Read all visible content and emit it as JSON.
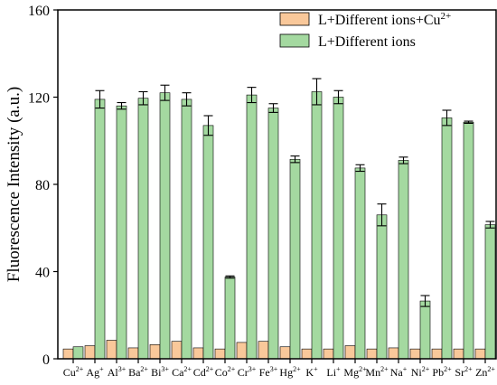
{
  "chart_data": {
    "type": "bar",
    "title": "",
    "xlabel": "",
    "ylabel": "Fluorescence Intensity (a.u.)",
    "ylim": [
      0,
      160
    ],
    "yticks": [
      0,
      40,
      80,
      120,
      160
    ],
    "grid": false,
    "legend_position": "top-right",
    "categories": [
      {
        "base": "Cu",
        "sup": "2+"
      },
      {
        "base": "Ag",
        "sup": "+"
      },
      {
        "base": "Al",
        "sup": "3+"
      },
      {
        "base": "Ba",
        "sup": "2+"
      },
      {
        "base": "Bi",
        "sup": "3+"
      },
      {
        "base": "Ca",
        "sup": "2+"
      },
      {
        "base": "Cd",
        "sup": "2+"
      },
      {
        "base": "Co",
        "sup": "2+"
      },
      {
        "base": "Cr",
        "sup": "3+"
      },
      {
        "base": "Fe",
        "sup": "3+"
      },
      {
        "base": "Hg",
        "sup": "2+"
      },
      {
        "base": "K",
        "sup": "+"
      },
      {
        "base": "Li",
        "sup": "+"
      },
      {
        "base": "Mg",
        "sup": "2+"
      },
      {
        "base": "Mn",
        "sup": "2+"
      },
      {
        "base": "Na",
        "sup": "+"
      },
      {
        "base": "Ni",
        "sup": "2+"
      },
      {
        "base": "Pb",
        "sup": "2+"
      },
      {
        "base": "Sr",
        "sup": "2+"
      },
      {
        "base": "Zn",
        "sup": "2+"
      }
    ],
    "series": [
      {
        "name": "L+Different ions+Cu",
        "name_sup": "2+",
        "color": "#f9c89a",
        "values": [
          4.5,
          6.0,
          8.5,
          5.0,
          6.5,
          8.0,
          5.0,
          4.5,
          7.5,
          8.0,
          5.5,
          4.5,
          4.5,
          6.0,
          4.5,
          5.0,
          4.5,
          4.5,
          4.5,
          4.5
        ],
        "errors": [
          0,
          0,
          0,
          0,
          0,
          0,
          0,
          0,
          0,
          0,
          0,
          0,
          0,
          0,
          0,
          0,
          0,
          0,
          0,
          0
        ]
      },
      {
        "name": "L+Different ions",
        "name_sup": "",
        "color": "#a4d9a0",
        "values": [
          5.5,
          119,
          116,
          119.5,
          122,
          119,
          107,
          37.5,
          121,
          115,
          91.5,
          122.5,
          120,
          87.5,
          66,
          91,
          26.5,
          110.5,
          108.5,
          61.5
        ],
        "errors": [
          0,
          4,
          1.5,
          3,
          3.5,
          3,
          4.5,
          0.5,
          3.5,
          2,
          1.5,
          6,
          3,
          1.5,
          5,
          1.5,
          2.5,
          3.5,
          0.5,
          1.5
        ]
      }
    ]
  }
}
